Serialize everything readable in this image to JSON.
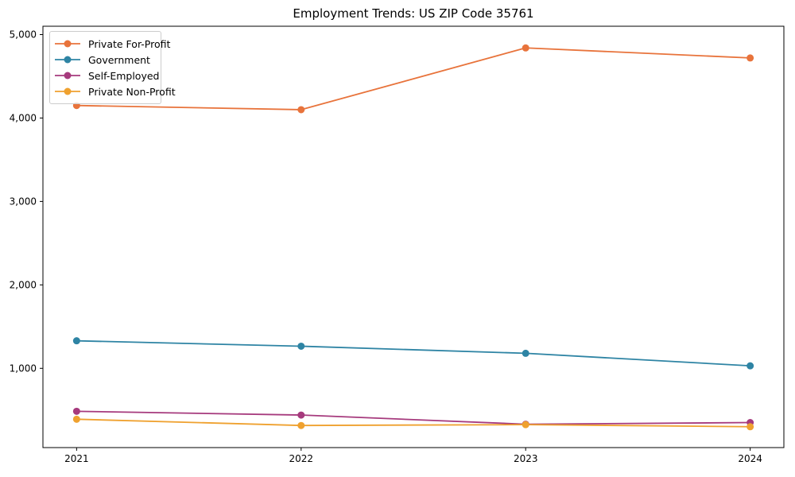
{
  "figure": {
    "background": "#ffffff",
    "axis_color": "#000000"
  },
  "chart_data": {
    "type": "line",
    "title": "Employment Trends: US ZIP Code 35761",
    "xlabel": "",
    "ylabel": "",
    "x": [
      2021,
      2022,
      2023,
      2024
    ],
    "xtick_labels": [
      "2021",
      "2022",
      "2023",
      "2024"
    ],
    "ytick_values": [
      1000,
      2000,
      3000,
      4000,
      5000
    ],
    "ytick_labels": [
      "1,000",
      "2,000",
      "3,000",
      "4,000",
      "5,000"
    ],
    "xlim": [
      2020.85,
      2024.15
    ],
    "ylim": [
      50,
      5100
    ],
    "grid": false,
    "legend_position": "upper-left",
    "marker": "circle",
    "series": [
      {
        "name": "Private For-Profit",
        "color": "#e8733b",
        "values": [
          4150,
          4100,
          4840,
          4720
        ]
      },
      {
        "name": "Government",
        "color": "#2e84a4",
        "values": [
          1330,
          1265,
          1180,
          1030
        ]
      },
      {
        "name": "Self-Employed",
        "color": "#a63a7d",
        "values": [
          485,
          440,
          330,
          350
        ]
      },
      {
        "name": "Private Non-Profit",
        "color": "#efa12f",
        "values": [
          390,
          315,
          325,
          300
        ]
      }
    ]
  }
}
